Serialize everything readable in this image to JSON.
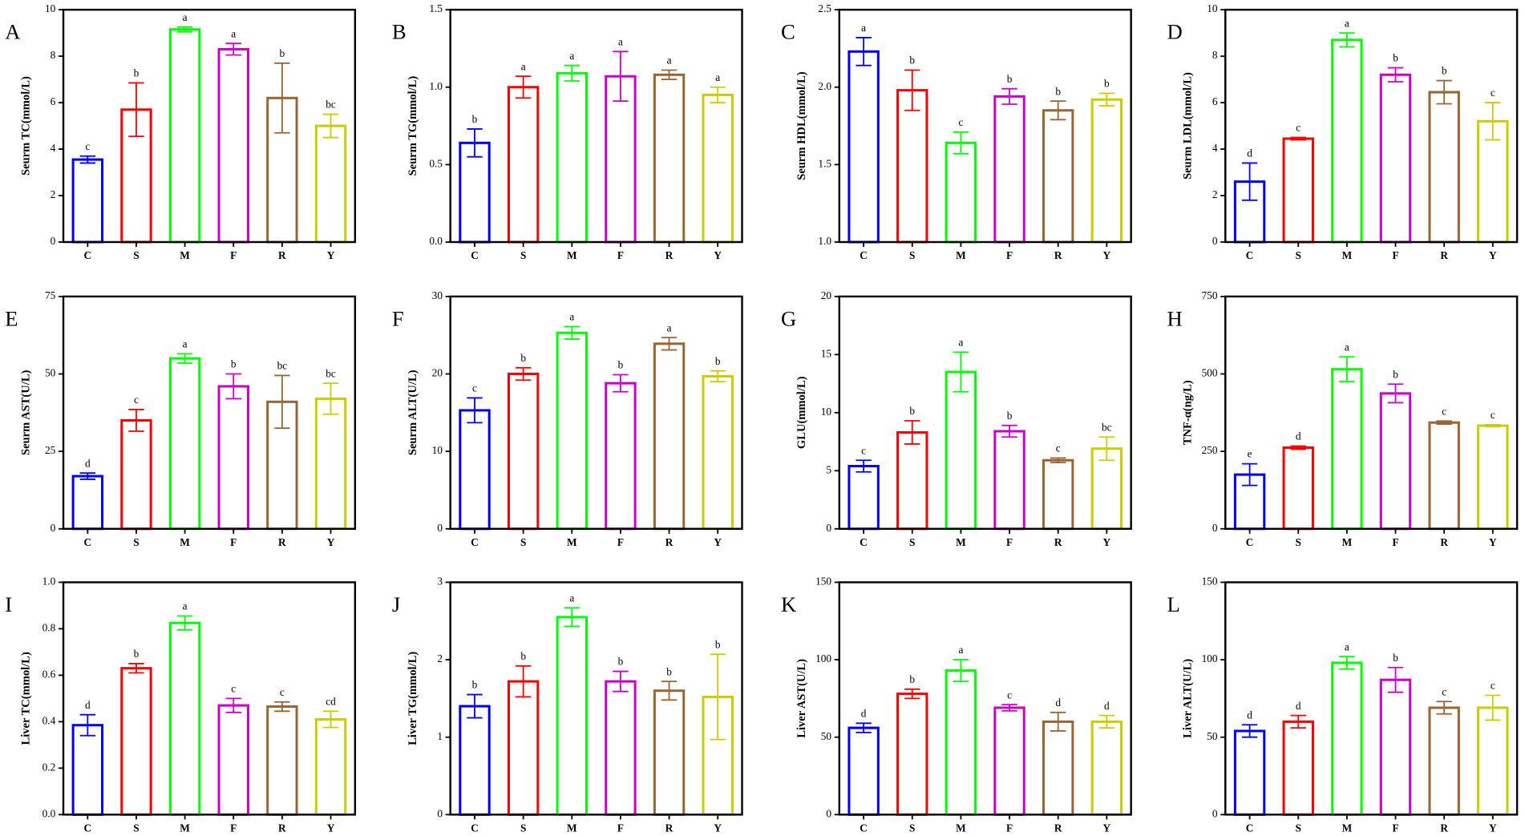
{
  "chart_data": [
    {
      "type": "bar",
      "panel": "A",
      "y_label": "Seurm TC(mmol/L)",
      "categories": [
        "C",
        "S",
        "M",
        "F",
        "R",
        "Y"
      ],
      "colors": [
        "#0000ff",
        "#ff0000",
        "#00ff00",
        "#cc00cc",
        "#996633",
        "#cccc00"
      ],
      "values": [
        3.55,
        5.7,
        9.15,
        8.3,
        6.2,
        5.0
      ],
      "errors": [
        0.15,
        1.15,
        0.1,
        0.25,
        1.5,
        0.5
      ],
      "letters": [
        "c",
        "b",
        "a",
        "a",
        "b",
        "bc"
      ],
      "ylim": [
        0,
        10
      ],
      "yticks": [
        0,
        2,
        4,
        6,
        8,
        10
      ]
    },
    {
      "type": "bar",
      "panel": "B",
      "y_label": "Seurm TG(mmol/L)",
      "categories": [
        "C",
        "S",
        "M",
        "F",
        "R",
        "Y"
      ],
      "colors": [
        "#0000ff",
        "#ff0000",
        "#00ff00",
        "#cc00cc",
        "#996633",
        "#cccc00"
      ],
      "values": [
        0.64,
        1.0,
        1.09,
        1.07,
        1.08,
        0.95
      ],
      "errors": [
        0.09,
        0.07,
        0.05,
        0.16,
        0.03,
        0.05
      ],
      "letters": [
        "b",
        "a",
        "a",
        "a",
        "a",
        "a"
      ],
      "ylim": [
        0,
        1.5
      ],
      "yticks": [
        {
          "value": 0,
          "label": "0.0"
        },
        0.5,
        {
          "value": 1,
          "label": "1.0"
        },
        1.5
      ]
    },
    {
      "type": "bar",
      "panel": "C",
      "y_label": "Seurm HDL(mmol/L)",
      "categories": [
        "C",
        "S",
        "M",
        "F",
        "R",
        "Y"
      ],
      "colors": [
        "#0000ff",
        "#ff0000",
        "#00ff00",
        "#cc00cc",
        "#996633",
        "#cccc00"
      ],
      "values": [
        2.23,
        1.98,
        1.64,
        1.94,
        1.85,
        1.92
      ],
      "errors": [
        0.09,
        0.13,
        0.07,
        0.05,
        0.06,
        0.04
      ],
      "letters": [
        "a",
        "b",
        "c",
        "b",
        "b",
        "b"
      ],
      "ylim": [
        1,
        2.5
      ],
      "yticks": [
        {
          "value": 1,
          "label": "1.0"
        },
        1.5,
        {
          "value": 2,
          "label": "2.0"
        },
        2.5
      ]
    },
    {
      "type": "bar",
      "panel": "D",
      "y_label": "Seurm LDL(mmol/L)",
      "categories": [
        "C",
        "S",
        "M",
        "F",
        "R",
        "Y"
      ],
      "colors": [
        "#0000ff",
        "#ff0000",
        "#00ff00",
        "#cc00cc",
        "#996633",
        "#cccc00"
      ],
      "values": [
        2.6,
        4.45,
        8.7,
        7.2,
        6.45,
        5.2
      ],
      "errors": [
        0.8,
        0.05,
        0.3,
        0.3,
        0.5,
        0.8
      ],
      "letters": [
        "d",
        "c",
        "a",
        "b",
        "b",
        "c"
      ],
      "ylim": [
        0,
        10
      ],
      "yticks": [
        0,
        2,
        4,
        6,
        8,
        10
      ]
    },
    {
      "type": "bar",
      "panel": "E",
      "y_label": "Seurm AST(U/L)",
      "categories": [
        "C",
        "S",
        "M",
        "F",
        "R",
        "Y"
      ],
      "colors": [
        "#0000ff",
        "#ff0000",
        "#00ff00",
        "#cc00cc",
        "#996633",
        "#cccc00"
      ],
      "values": [
        17,
        35,
        55,
        46,
        41,
        42
      ],
      "errors": [
        1,
        3.5,
        1.5,
        4,
        8.5,
        5
      ],
      "letters": [
        "d",
        "c",
        "a",
        "b",
        "bc",
        "bc"
      ],
      "ylim": [
        0,
        75
      ],
      "yticks": [
        0,
        25,
        50,
        75
      ]
    },
    {
      "type": "bar",
      "panel": "F",
      "y_label": "Seurm ALT(U/L)",
      "categories": [
        "C",
        "S",
        "M",
        "F",
        "R",
        "Y"
      ],
      "colors": [
        "#0000ff",
        "#ff0000",
        "#00ff00",
        "#cc00cc",
        "#996633",
        "#cccc00"
      ],
      "values": [
        15.3,
        20,
        25.3,
        18.8,
        23.9,
        19.7
      ],
      "errors": [
        1.6,
        0.8,
        0.8,
        1.1,
        0.8,
        0.7
      ],
      "letters": [
        "c",
        "b",
        "a",
        "b",
        "a",
        "b"
      ],
      "ylim": [
        0,
        30
      ],
      "yticks": [
        0,
        10,
        20,
        30
      ]
    },
    {
      "type": "bar",
      "panel": "G",
      "y_label": "GLU(mmol/L)",
      "categories": [
        "C",
        "S",
        "M",
        "F",
        "R",
        "Y"
      ],
      "colors": [
        "#0000ff",
        "#ff0000",
        "#00ff00",
        "#cc00cc",
        "#996633",
        "#cccc00"
      ],
      "values": [
        5.4,
        8.3,
        13.5,
        8.4,
        5.9,
        6.9
      ],
      "errors": [
        0.5,
        1,
        1.7,
        0.5,
        0.2,
        1
      ],
      "letters": [
        "c",
        "b",
        "a",
        "b",
        "c",
        "bc"
      ],
      "ylim": [
        0,
        20
      ],
      "yticks": [
        0,
        5,
        10,
        15,
        20
      ]
    },
    {
      "type": "bar",
      "panel": "H",
      "y_label": "TNF-α(ng/L)",
      "categories": [
        "C",
        "S",
        "M",
        "F",
        "R",
        "Y"
      ],
      "colors": [
        "#0000ff",
        "#ff0000",
        "#00ff00",
        "#cc00cc",
        "#996633",
        "#cccc00"
      ],
      "values": [
        175,
        262,
        515,
        437,
        343,
        333
      ],
      "errors": [
        35,
        5,
        40,
        30,
        5,
        3
      ],
      "letters": [
        "e",
        "d",
        "a",
        "b",
        "c",
        "c"
      ],
      "ylim": [
        0,
        750
      ],
      "yticks": [
        0,
        250,
        500,
        750
      ]
    },
    {
      "type": "bar",
      "panel": "I",
      "y_label": "Liver TC(mmol/L)",
      "categories": [
        "C",
        "S",
        "M",
        "F",
        "R",
        "Y"
      ],
      "colors": [
        "#0000ff",
        "#ff0000",
        "#00ff00",
        "#cc00cc",
        "#996633",
        "#cccc00"
      ],
      "values": [
        0.385,
        0.63,
        0.825,
        0.47,
        0.465,
        0.41
      ],
      "errors": [
        0.045,
        0.02,
        0.03,
        0.03,
        0.02,
        0.035
      ],
      "letters": [
        "d",
        "b",
        "a",
        "c",
        "c",
        "cd"
      ],
      "ylim": [
        0,
        1
      ],
      "yticks": [
        {
          "value": 0,
          "label": "0.0"
        },
        0.2,
        0.4,
        0.6,
        0.8,
        {
          "value": 1,
          "label": "1.0"
        }
      ]
    },
    {
      "type": "bar",
      "panel": "J",
      "y_label": "Liver TG(mmol/L)",
      "categories": [
        "C",
        "S",
        "M",
        "F",
        "R",
        "Y"
      ],
      "colors": [
        "#0000ff",
        "#ff0000",
        "#00ff00",
        "#cc00cc",
        "#996633",
        "#cccc00"
      ],
      "values": [
        1.4,
        1.72,
        2.55,
        1.72,
        1.6,
        1.52
      ],
      "errors": [
        0.15,
        0.2,
        0.12,
        0.13,
        0.12,
        0.55
      ],
      "letters": [
        "b",
        "b",
        "a",
        "b",
        "b",
        "b"
      ],
      "ylim": [
        0,
        3
      ],
      "yticks": [
        0,
        1,
        2,
        3
      ]
    },
    {
      "type": "bar",
      "panel": "K",
      "y_label": "Liver AST(U/L)",
      "categories": [
        "C",
        "S",
        "M",
        "F",
        "R",
        "Y"
      ],
      "colors": [
        "#0000ff",
        "#ff0000",
        "#00ff00",
        "#cc00cc",
        "#996633",
        "#cccc00"
      ],
      "values": [
        56,
        78,
        93,
        69,
        60,
        60
      ],
      "errors": [
        3,
        3,
        7,
        2,
        6,
        4
      ],
      "letters": [
        "d",
        "b",
        "a",
        "c",
        "d",
        "d"
      ],
      "ylim": [
        0,
        150
      ],
      "yticks": [
        0,
        50,
        100,
        150
      ]
    },
    {
      "type": "bar",
      "panel": "L",
      "y_label": "Liver ALT(U/L)",
      "categories": [
        "C",
        "S",
        "M",
        "F",
        "R",
        "Y"
      ],
      "colors": [
        "#0000ff",
        "#ff0000",
        "#00ff00",
        "#cc00cc",
        "#996633",
        "#cccc00"
      ],
      "values": [
        54,
        60,
        98,
        87,
        69,
        69
      ],
      "errors": [
        4,
        4,
        4,
        8,
        4,
        8
      ],
      "letters": [
        "d",
        "d",
        "a",
        "b",
        "c",
        "c"
      ],
      "ylim": [
        0,
        150
      ],
      "yticks": [
        0,
        50,
        100,
        150
      ]
    }
  ]
}
